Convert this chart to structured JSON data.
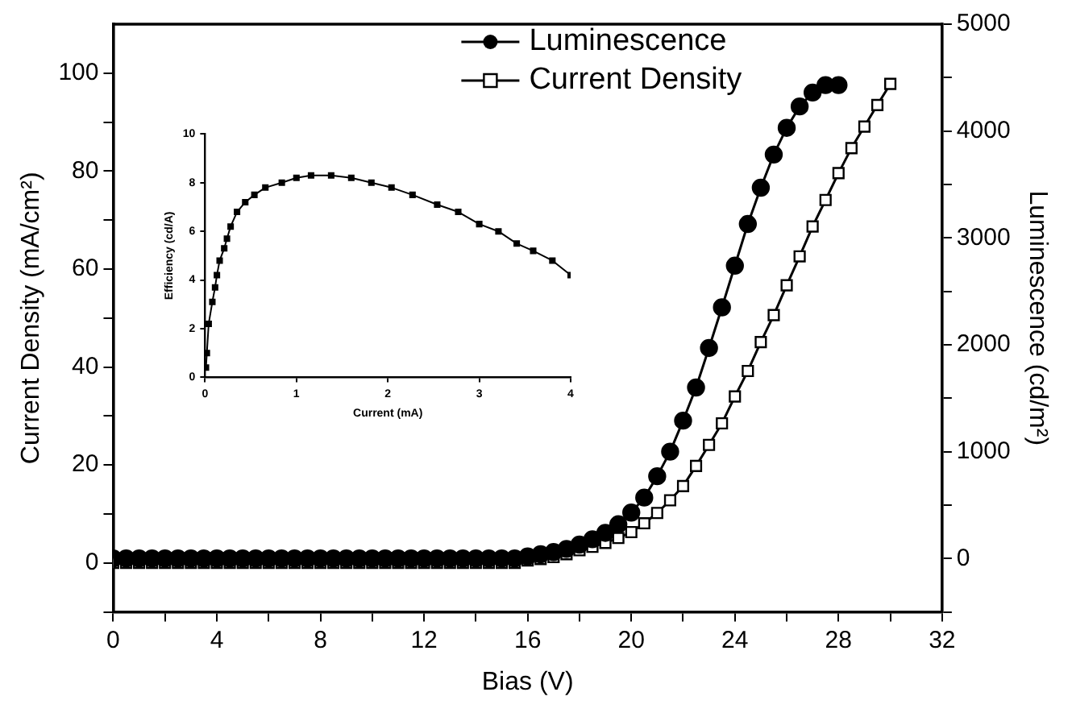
{
  "chart_data": [
    {
      "type": "line",
      "xlabel": "Bias (V)",
      "ylabel": "Current Density (mA/cm²)",
      "y2label": "Luminescence (cd/m²)",
      "xlim": [
        0,
        32
      ],
      "xticks": [
        0,
        {
          "value": 2,
          "label": null
        },
        4,
        {
          "value": 6,
          "label": null
        },
        8,
        {
          "value": 10,
          "label": null
        },
        12,
        {
          "value": 14,
          "label": null
        },
        16,
        {
          "value": 18,
          "label": null
        },
        20,
        {
          "value": 22,
          "label": null
        },
        24,
        {
          "value": 26,
          "label": null
        },
        28,
        {
          "value": 30,
          "label": null
        },
        32
      ],
      "ylim": [
        -10,
        110
      ],
      "yticks": [
        {
          "value": -10,
          "label": null
        },
        0,
        {
          "value": 10,
          "label": null
        },
        20,
        {
          "value": 30,
          "label": null
        },
        40,
        {
          "value": 50,
          "label": null
        },
        60,
        {
          "value": 70,
          "label": null
        },
        80,
        {
          "value": 90,
          "label": null
        },
        100
      ],
      "y2lim": [
        -500,
        5000
      ],
      "y2ticks": [
        {
          "value": -500,
          "label": null
        },
        0,
        {
          "value": 500,
          "label": null
        },
        1000,
        {
          "value": 1500,
          "label": null
        },
        2000,
        {
          "value": 2500,
          "label": null
        },
        3000,
        {
          "value": 3500,
          "label": null
        },
        4000,
        {
          "value": 4500,
          "label": null
        },
        5000
      ],
      "grid": false,
      "legend": "top",
      "line_style": "solid",
      "series": [
        {
          "name": "Luminescence",
          "color": "#000000",
          "marker": "circle",
          "axis": "y2",
          "x": [
            0,
            0.5,
            1,
            1.5,
            2,
            2.5,
            3,
            3.5,
            4,
            4.5,
            5,
            5.5,
            6,
            6.5,
            7,
            7.5,
            8,
            8.5,
            9,
            9.5,
            10,
            10.5,
            11,
            11.5,
            12,
            12.5,
            13,
            13.5,
            14,
            14.5,
            15,
            15.5,
            16,
            16.5,
            17,
            17.5,
            18,
            18.5,
            19,
            19.5,
            20,
            20.5,
            21,
            21.5,
            22,
            22.5,
            23,
            23.5,
            24,
            24.5,
            25,
            25.5,
            26,
            26.5,
            27,
            27.5,
            28
          ],
          "values": [
            0,
            0,
            0,
            0,
            0,
            0,
            0,
            0,
            0,
            0,
            0,
            0,
            0,
            0,
            0,
            0,
            0,
            0,
            0,
            0,
            0,
            0,
            0,
            0,
            0,
            0,
            0,
            0,
            0,
            0,
            0,
            0,
            20,
            40,
            60,
            90,
            130,
            180,
            240,
            320,
            430,
            570,
            770,
            1000,
            1290,
            1600,
            1970,
            2350,
            2740,
            3130,
            3470,
            3780,
            4030,
            4230,
            4360,
            4430,
            4430
          ]
        },
        {
          "name": "Current Density",
          "color": "#000000",
          "marker": "square",
          "axis": "y",
          "x": [
            0,
            0.5,
            1,
            1.5,
            2,
            2.5,
            3,
            3.5,
            4,
            4.5,
            5,
            5.5,
            6,
            6.5,
            7,
            7.5,
            8,
            8.5,
            9,
            9.5,
            10,
            10.5,
            11,
            11.5,
            12,
            12.5,
            13,
            13.5,
            14,
            14.5,
            15,
            15.5,
            16,
            16.5,
            17,
            17.5,
            18,
            18.5,
            19,
            19.5,
            20,
            20.5,
            21,
            21.5,
            22,
            22.5,
            23,
            23.5,
            24,
            24.5,
            25,
            25.5,
            26,
            26.5,
            27,
            27.5,
            28,
            28.5,
            29,
            29.5,
            30
          ],
          "values": [
            0,
            0,
            0,
            0,
            0,
            0,
            0,
            0,
            0,
            0,
            0,
            0,
            0,
            0,
            0,
            0,
            0,
            0,
            0,
            0,
            0,
            0,
            0,
            0,
            0,
            0,
            0,
            0,
            0,
            0,
            0,
            0,
            0.5,
            0.8,
            1.2,
            1.8,
            2.6,
            3.3,
            4.1,
            5.1,
            6.3,
            8.1,
            10.2,
            12.8,
            15.7,
            19.8,
            24.1,
            28.5,
            34.0,
            39.2,
            45.1,
            50.6,
            56.7,
            62.6,
            68.7,
            74.1,
            79.6,
            84.7,
            89.1,
            93.5,
            97.8
          ]
        }
      ]
    },
    {
      "type": "line",
      "xlabel": "Current (mA)",
      "ylabel": "Efficiency (cd/A)",
      "xlim": [
        0,
        4
      ],
      "xticks": [
        0,
        1,
        2,
        3,
        4
      ],
      "ylim": [
        0,
        10
      ],
      "yticks": [
        0,
        2,
        4,
        6,
        8,
        10
      ],
      "grid": false,
      "legend": false,
      "line_style": "solid",
      "series": [
        {
          "color": "#000000",
          "marker": "square",
          "x": [
            0.01,
            0.02,
            0.04,
            0.08,
            0.11,
            0.13,
            0.16,
            0.21,
            0.24,
            0.28,
            0.35,
            0.44,
            0.54,
            0.66,
            0.84,
            1.0,
            1.16,
            1.38,
            1.6,
            1.82,
            2.04,
            2.27,
            2.54,
            2.77,
            3.0,
            3.21,
            3.41,
            3.59,
            3.8,
            4.0
          ],
          "values": [
            0.4,
            1.0,
            2.2,
            3.1,
            3.7,
            4.2,
            4.8,
            5.3,
            5.7,
            6.2,
            6.8,
            7.2,
            7.5,
            7.8,
            8.0,
            8.2,
            8.3,
            8.3,
            8.2,
            8.0,
            7.8,
            7.5,
            7.1,
            6.8,
            6.3,
            6.0,
            5.5,
            5.2,
            4.8,
            4.2
          ]
        }
      ]
    }
  ]
}
